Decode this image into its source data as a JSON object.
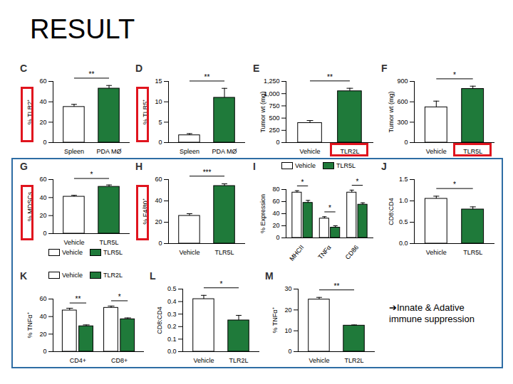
{
  "title": "RESULT",
  "annotation": "➔Innate & Adative immune suppression",
  "chart_data": [
    {
      "title": "C",
      "type": "bar",
      "ylabel": "% TLR2⁺",
      "categories": [
        "Spleen",
        "PDA MØ"
      ],
      "values": [
        35,
        53
      ],
      "errors": [
        2.5,
        3
      ],
      "colors": [
        "#ffffff",
        "#1f7a3a"
      ],
      "ylim": [
        0,
        60
      ],
      "yticks": [
        0,
        20,
        40,
        60
      ],
      "significance": "**"
    },
    {
      "title": "D",
      "type": "bar",
      "ylabel": "% TLR5⁺",
      "categories": [
        "Spleen",
        "PDA MØ"
      ],
      "values": [
        1.8,
        11
      ],
      "errors": [
        0.4,
        2.3
      ],
      "colors": [
        "#ffffff",
        "#1f7a3a"
      ],
      "ylim": [
        0,
        15
      ],
      "yticks": [
        0,
        5,
        10,
        15
      ],
      "significance": "**"
    },
    {
      "title": "E",
      "type": "bar",
      "ylabel": "Tumor wt (mg)",
      "categories": [
        "Vehicle",
        "TLR2L"
      ],
      "values": [
        400,
        1050
      ],
      "errors": [
        50,
        60
      ],
      "colors": [
        "#ffffff",
        "#1f7a3a"
      ],
      "ylim": [
        0,
        1250
      ],
      "yticks": [
        0,
        250,
        500,
        750,
        {
          "value": 1000,
          "label": "1,000"
        },
        {
          "value": 1250,
          "label": "1,250"
        }
      ],
      "significance": "**"
    },
    {
      "title": "F",
      "type": "bar",
      "ylabel": "Tumor wt (mg)",
      "categories": [
        "Vehicle",
        "TLR5L"
      ],
      "values": [
        520,
        790
      ],
      "errors": [
        90,
        40
      ],
      "colors": [
        "#ffffff",
        "#1f7a3a"
      ],
      "ylim": [
        0,
        900
      ],
      "yticks": [
        0,
        300,
        600,
        900
      ],
      "significance": "*"
    },
    {
      "title": "G",
      "type": "bar",
      "ylabel": "% MDSCs",
      "categories": [
        "Vehicle",
        "TLR5L"
      ],
      "values": [
        41,
        52
      ],
      "errors": [
        1.5,
        2
      ],
      "colors": [
        "#ffffff",
        "#1f7a3a"
      ],
      "ylim": [
        0,
        60
      ],
      "yticks": [
        0,
        20,
        40,
        60
      ],
      "significance": "*",
      "legend": "bottom"
    },
    {
      "title": "H",
      "type": "bar",
      "ylabel": "% F4/80⁺",
      "categories": [
        "Vehicle",
        "TLR5L"
      ],
      "values": [
        26,
        54
      ],
      "errors": [
        2,
        2
      ],
      "colors": [
        "#ffffff",
        "#1f7a3a"
      ],
      "ylim": [
        0,
        60
      ],
      "yticks": [
        0,
        20,
        40,
        60
      ],
      "significance": "***"
    },
    {
      "title": "I",
      "type": "bar",
      "ylabel": "% Expression",
      "categories": [
        "MHCII",
        "TNFα",
        "CD86"
      ],
      "series": [
        {
          "name": "Vehicle",
          "color": "#ffffff",
          "values": [
            75,
            32,
            75
          ],
          "errors": [
            3,
            3,
            4
          ]
        },
        {
          "name": "TLR5L",
          "color": "#1f7a3a",
          "values": [
            58,
            17,
            55
          ],
          "errors": [
            4,
            3,
            3
          ]
        }
      ],
      "ylim": [
        0,
        80
      ],
      "yticks": [
        0,
        20,
        40,
        60,
        80
      ],
      "significance": [
        "*",
        "*",
        "*"
      ],
      "legend": "top"
    },
    {
      "title": "J",
      "type": "bar",
      "ylabel": "CD8:CD4",
      "categories": [
        "Vehicle",
        "TLR5L"
      ],
      "values": [
        1.05,
        0.8
      ],
      "errors": [
        0.06,
        0.06
      ],
      "colors": [
        "#ffffff",
        "#1f7a3a"
      ],
      "ylim": [
        0,
        1.5
      ],
      "yticks": [
        {
          "value": 0,
          "label": "0.0"
        },
        0.5,
        {
          "value": 1,
          "label": "1.0"
        },
        1.5
      ],
      "significance": "*"
    },
    {
      "title": "K",
      "type": "bar",
      "ylabel": "% TNFα⁺",
      "categories": [
        "CD4+",
        "CD8+"
      ],
      "series": [
        {
          "name": "Vehicle",
          "color": "#ffffff",
          "values": [
            47,
            50
          ],
          "errors": [
            2.5,
            2
          ]
        },
        {
          "name": "TLR2L",
          "color": "#1f7a3a",
          "values": [
            29,
            37
          ],
          "errors": [
            1.5,
            1.5
          ]
        }
      ],
      "ylim": [
        0,
        60
      ],
      "yticks": [
        0,
        20,
        40,
        60
      ],
      "significance": [
        "**",
        "*"
      ],
      "legend": "top"
    },
    {
      "title": "L",
      "type": "bar",
      "ylabel": "CD8:CD4",
      "categories": [
        "Vehicle",
        "TLR2L"
      ],
      "values": [
        0.42,
        0.25
      ],
      "errors": [
        0.03,
        0.04
      ],
      "colors": [
        "#ffffff",
        "#1f7a3a"
      ],
      "ylim": [
        0,
        0.5
      ],
      "yticks": [
        {
          "value": 0,
          "label": "0.0"
        },
        0.1,
        0.2,
        0.3,
        0.4,
        0.5
      ],
      "significance": "*"
    },
    {
      "title": "M",
      "type": "bar",
      "ylabel": "% TNFα⁺",
      "categories": [
        "Vehicle",
        "TLR2L"
      ],
      "values": [
        25,
        12.5
      ],
      "errors": [
        1,
        0.3
      ],
      "colors": [
        "#ffffff",
        "#1f7a3a"
      ],
      "ylim": [
        0,
        30
      ],
      "yticks": [
        0,
        10,
        20,
        30
      ],
      "significance": "**"
    }
  ]
}
